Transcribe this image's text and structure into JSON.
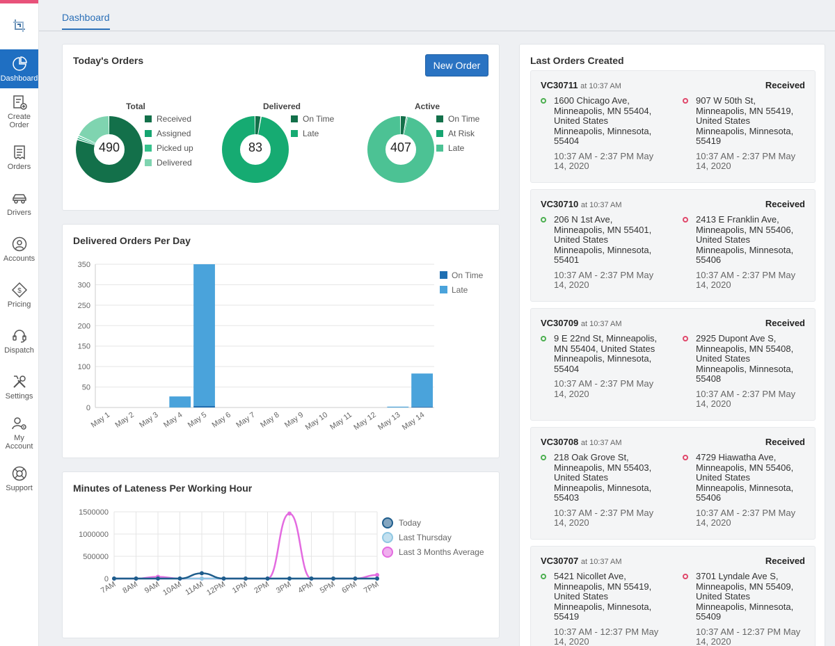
{
  "nav": [
    {
      "label": "Dashboard",
      "icon": "pie-chart-icon",
      "active": true
    },
    {
      "label": "Create Order",
      "icon": "create-order-icon"
    },
    {
      "label": "Orders",
      "icon": "receipt-icon"
    },
    {
      "label": "Drivers",
      "icon": "car-icon"
    },
    {
      "label": "Accounts",
      "icon": "user-circle-icon"
    },
    {
      "label": "Pricing",
      "icon": "price-tag-icon"
    },
    {
      "label": "Dispatch",
      "icon": "headset-icon"
    },
    {
      "label": "Settings",
      "icon": "tools-icon"
    },
    {
      "label": "My Account",
      "icon": "user-gear-icon"
    },
    {
      "label": "Support",
      "icon": "lifebuoy-icon"
    }
  ],
  "header": {
    "tab": "Dashboard"
  },
  "todays_orders": {
    "title": "Today's Orders",
    "new_order_label": "New Order",
    "donuts": [
      {
        "label": "Total",
        "center": "490",
        "segments": [
          {
            "name": "Received",
            "value": 0.8,
            "color": "#13704a"
          },
          {
            "name": "Assigned",
            "value": 0.01,
            "color": "#16a571"
          },
          {
            "name": "Picked up",
            "value": 0.01,
            "color": "#37c28d"
          },
          {
            "name": "Delivered",
            "value": 0.18,
            "color": "#7fd4b0"
          }
        ]
      },
      {
        "label": "Delivered",
        "center": "83",
        "segments": [
          {
            "name": "On Time",
            "value": 0.03,
            "color": "#13704a"
          },
          {
            "name": "Late",
            "value": 0.97,
            "color": "#16ab72"
          }
        ]
      },
      {
        "label": "Active",
        "center": "407",
        "segments": [
          {
            "name": "On Time",
            "value": 0.03,
            "color": "#13704a"
          },
          {
            "name": "At Risk",
            "value": 0.005,
            "color": "#16a571"
          },
          {
            "name": "Late",
            "value": 0.965,
            "color": "#4cc294"
          }
        ]
      }
    ]
  },
  "chart_data": [
    {
      "type": "bar",
      "title": "Delivered Orders Per Day",
      "categories": [
        "May 1",
        "May 2",
        "May 3",
        "May 4",
        "May 5",
        "May 6",
        "May 7",
        "May 8",
        "May 9",
        "May 10",
        "May 11",
        "May 12",
        "May 13",
        "May 14"
      ],
      "series": [
        {
          "name": "On Time",
          "color": "#1f6fb2",
          "values": [
            0,
            0,
            0,
            0,
            4,
            0,
            0,
            0,
            0,
            0,
            0,
            0,
            0,
            2
          ]
        },
        {
          "name": "Late",
          "color": "#4aa3db",
          "values": [
            0,
            0,
            0,
            27,
            346,
            0,
            0,
            0,
            0,
            0,
            0,
            0,
            2,
            81
          ]
        }
      ],
      "stacked": true,
      "ylim": [
        0,
        350
      ],
      "yticks": [
        0,
        50,
        100,
        150,
        200,
        250,
        300,
        350
      ],
      "legend": "right"
    },
    {
      "type": "line",
      "title": "Minutes of Lateness Per Working Hour",
      "x": [
        "7AM",
        "8AM",
        "9AM",
        "10AM",
        "11AM",
        "12PM",
        "1PM",
        "2PM",
        "3PM",
        "4PM",
        "5PM",
        "6PM",
        "7PM"
      ],
      "series": [
        {
          "name": "Today",
          "color": "#1f5d8c",
          "values": [
            0,
            0,
            0,
            0,
            120000,
            0,
            0,
            0,
            0,
            0,
            0,
            0,
            0
          ]
        },
        {
          "name": "Last Thursday",
          "color": "#8fc7e2",
          "values": [
            0,
            0,
            0,
            0,
            0,
            0,
            0,
            0,
            0,
            0,
            0,
            0,
            0
          ]
        },
        {
          "name": "Last 3 Months Average",
          "color": "#e36be0",
          "values": [
            0,
            0,
            40000,
            0,
            0,
            0,
            0,
            0,
            1460000,
            0,
            0,
            0,
            80000
          ]
        }
      ],
      "ylim": [
        0,
        1500000
      ],
      "yticks": [
        0,
        500000,
        1000000,
        1500000
      ],
      "legend": "right"
    }
  ],
  "last_orders": {
    "title": "Last Orders Created",
    "orders": [
      {
        "id": "VC30711",
        "time": "at 10:37 AM",
        "status": "Received",
        "pickup": {
          "address": "1600 Chicago Ave, Minneapolis, MN 55404, United States",
          "city": "Minneapolis, Minnesota, 55404",
          "window": "10:37 AM - 2:37 PM May 14, 2020"
        },
        "dropoff": {
          "address": "907 W 50th St, Minneapolis, MN 55419, United States",
          "city": "Minneapolis, Minnesota, 55419",
          "window": "10:37 AM - 2:37 PM May 14, 2020"
        }
      },
      {
        "id": "VC30710",
        "time": "at 10:37 AM",
        "status": "Received",
        "pickup": {
          "address": "206 N 1st Ave, Minneapolis, MN 55401, United States",
          "city": "Minneapolis, Minnesota, 55401",
          "window": "10:37 AM - 2:37 PM May 14, 2020"
        },
        "dropoff": {
          "address": "2413 E Franklin Ave, Minneapolis, MN 55406, United States",
          "city": "Minneapolis, Minnesota, 55406",
          "window": "10:37 AM - 2:37 PM May 14, 2020"
        }
      },
      {
        "id": "VC30709",
        "time": "at 10:37 AM",
        "status": "Received",
        "pickup": {
          "address": "9 E 22nd St, Minneapolis, MN 55404, United States",
          "city": "Minneapolis, Minnesota, 55404",
          "window": "10:37 AM - 2:37 PM May 14, 2020"
        },
        "dropoff": {
          "address": "2925 Dupont Ave S, Minneapolis, MN 55408, United States",
          "city": "Minneapolis, Minnesota, 55408",
          "window": "10:37 AM - 2:37 PM May 14, 2020"
        }
      },
      {
        "id": "VC30708",
        "time": "at 10:37 AM",
        "status": "Received",
        "pickup": {
          "address": "218 Oak Grove St, Minneapolis, MN 55403, United States",
          "city": "Minneapolis, Minnesota, 55403",
          "window": "10:37 AM - 2:37 PM May 14, 2020"
        },
        "dropoff": {
          "address": "4729 Hiawatha Ave, Minneapolis, MN 55406, United States",
          "city": "Minneapolis, Minnesota, 55406",
          "window": "10:37 AM - 2:37 PM May 14, 2020"
        }
      },
      {
        "id": "VC30707",
        "time": "at 10:37 AM",
        "status": "Received",
        "pickup": {
          "address": "5421 Nicollet Ave, Minneapolis, MN 55419, United States",
          "city": "Minneapolis, Minnesota, 55419",
          "window": "10:37 AM - 12:37 PM May 14, 2020"
        },
        "dropoff": {
          "address": "3701 Lyndale Ave S, Minneapolis, MN 55409, United States",
          "city": "Minneapolis, Minnesota, 55409",
          "window": "10:37 AM - 12:37 PM May 14, 2020"
        }
      }
    ]
  }
}
